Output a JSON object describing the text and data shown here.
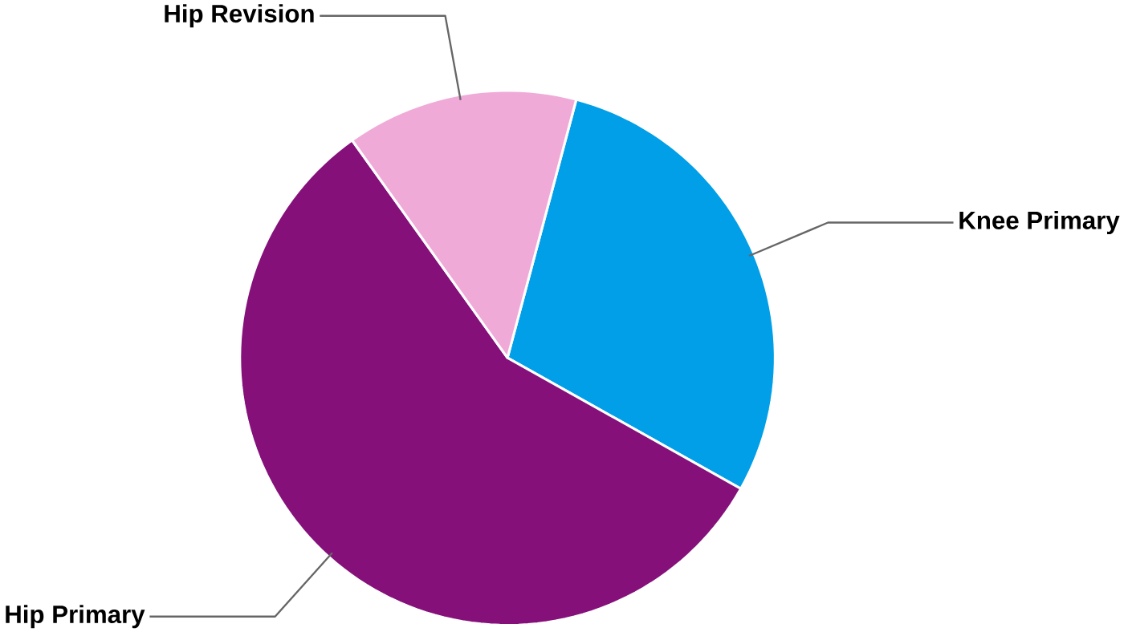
{
  "chart_data": {
    "type": "pie",
    "categories": [
      "Knee Primary",
      "Hip Primary",
      "Hip Revision"
    ],
    "values": [
      29,
      57,
      14
    ],
    "colors": [
      "#009fe8",
      "#85107a",
      "#f0aad8"
    ]
  }
}
